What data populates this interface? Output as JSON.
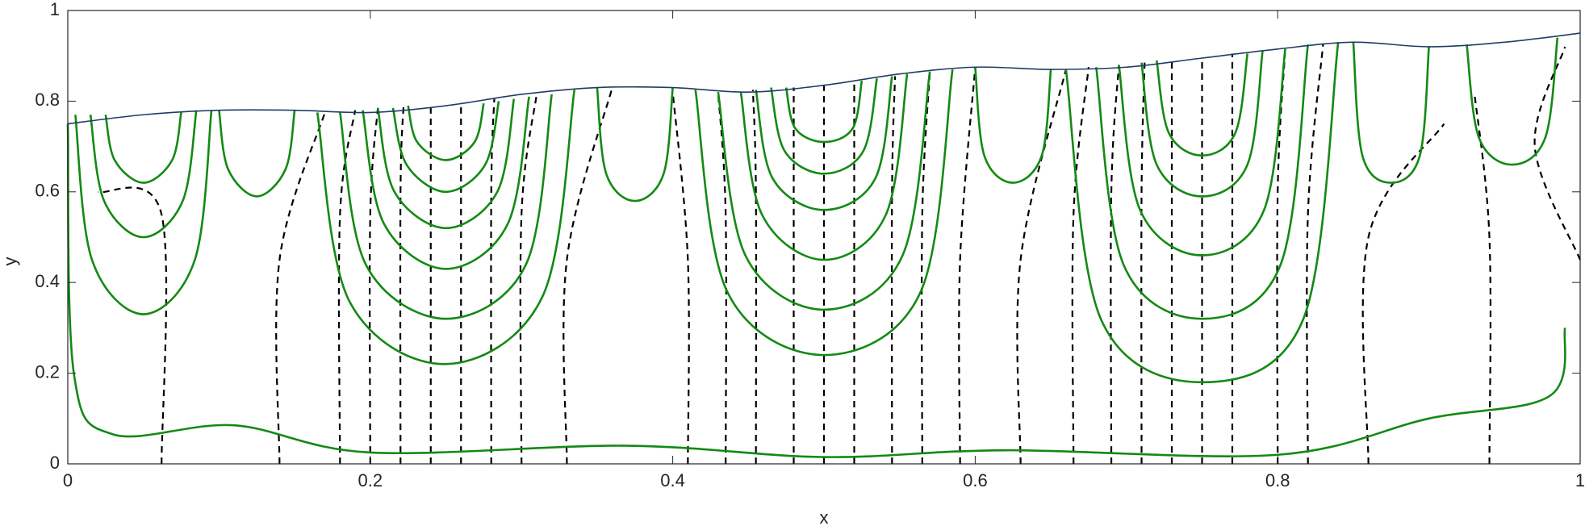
{
  "chart_data": {
    "type": "streamline",
    "xlabel": "x",
    "ylabel": "y",
    "xlim": [
      0,
      1
    ],
    "ylim": [
      0,
      1
    ],
    "xticks": [
      0,
      0.2,
      0.4,
      0.6,
      0.8,
      1
    ],
    "yticks": [
      0,
      0.2,
      0.4,
      0.6,
      0.8,
      1
    ],
    "surface": {
      "color": "#1f3d66",
      "x": [
        0,
        0.05,
        0.1,
        0.15,
        0.2,
        0.25,
        0.3,
        0.35,
        0.4,
        0.45,
        0.5,
        0.55,
        0.6,
        0.65,
        0.7,
        0.75,
        0.8,
        0.85,
        0.9,
        0.95,
        1
      ],
      "y": [
        0.75,
        0.77,
        0.78,
        0.78,
        0.775,
        0.79,
        0.815,
        0.83,
        0.83,
        0.82,
        0.835,
        0.86,
        0.875,
        0.87,
        0.875,
        0.895,
        0.915,
        0.93,
        0.92,
        0.93,
        0.95
      ]
    },
    "streamline_color": "#138a13",
    "streamlines": [
      {
        "x": [
          0,
          0.004,
          0.03,
          0.11,
          0.2,
          0.37,
          0.5,
          0.62,
          0.8,
          0.9,
          0.98,
          0.99
        ],
        "y": [
          0.75,
          0.2,
          0.065,
          0.085,
          0.025,
          0.04,
          0.015,
          0.03,
          0.02,
          0.1,
          0.15,
          0.3
        ]
      },
      {
        "x": [
          0.005,
          0.016,
          0.05,
          0.084,
          0.095
        ],
        "y": [
          0.77,
          0.45,
          0.33,
          0.45,
          0.78
        ]
      },
      {
        "x": [
          0.015,
          0.024,
          0.05,
          0.076,
          0.085
        ],
        "y": [
          0.77,
          0.58,
          0.5,
          0.58,
          0.78
        ]
      },
      {
        "x": [
          0.025,
          0.031,
          0.05,
          0.069,
          0.075
        ],
        "y": [
          0.77,
          0.67,
          0.62,
          0.67,
          0.775
        ]
      },
      {
        "x": [
          0.1,
          0.106,
          0.125,
          0.144,
          0.15
        ],
        "y": [
          0.78,
          0.65,
          0.59,
          0.65,
          0.78
        ]
      },
      {
        "x": [
          0.165,
          0.186,
          0.25,
          0.314,
          0.335
        ],
        "y": [
          0.775,
          0.36,
          0.22,
          0.37,
          0.825
        ]
      },
      {
        "x": [
          0.18,
          0.197,
          0.25,
          0.303,
          0.32
        ],
        "y": [
          0.775,
          0.44,
          0.32,
          0.44,
          0.815
        ]
      },
      {
        "x": [
          0.195,
          0.209,
          0.25,
          0.291,
          0.305
        ],
        "y": [
          0.78,
          0.53,
          0.43,
          0.53,
          0.81
        ]
      },
      {
        "x": [
          0.205,
          0.216,
          0.25,
          0.284,
          0.295
        ],
        "y": [
          0.785,
          0.6,
          0.52,
          0.6,
          0.805
        ]
      },
      {
        "x": [
          0.215,
          0.224,
          0.25,
          0.276,
          0.285
        ],
        "y": [
          0.785,
          0.66,
          0.6,
          0.66,
          0.8
        ]
      },
      {
        "x": [
          0.225,
          0.231,
          0.25,
          0.269,
          0.275
        ],
        "y": [
          0.79,
          0.71,
          0.67,
          0.71,
          0.795
        ]
      },
      {
        "x": [
          0.35,
          0.356,
          0.375,
          0.394,
          0.4
        ],
        "y": [
          0.83,
          0.64,
          0.58,
          0.64,
          0.83
        ]
      },
      {
        "x": [
          0.415,
          0.436,
          0.5,
          0.564,
          0.585
        ],
        "y": [
          0.825,
          0.38,
          0.24,
          0.38,
          0.87
        ]
      },
      {
        "x": [
          0.43,
          0.448,
          0.5,
          0.552,
          0.57
        ],
        "y": [
          0.82,
          0.46,
          0.34,
          0.46,
          0.865
        ]
      },
      {
        "x": [
          0.445,
          0.459,
          0.5,
          0.541,
          0.555
        ],
        "y": [
          0.82,
          0.55,
          0.45,
          0.55,
          0.86
        ]
      },
      {
        "x": [
          0.455,
          0.466,
          0.5,
          0.534,
          0.545
        ],
        "y": [
          0.825,
          0.63,
          0.56,
          0.63,
          0.855
        ]
      },
      {
        "x": [
          0.465,
          0.474,
          0.5,
          0.526,
          0.535
        ],
        "y": [
          0.83,
          0.69,
          0.64,
          0.69,
          0.85
        ]
      },
      {
        "x": [
          0.475,
          0.481,
          0.5,
          0.519,
          0.525
        ],
        "y": [
          0.83,
          0.74,
          0.71,
          0.74,
          0.845
        ]
      },
      {
        "x": [
          0.6,
          0.606,
          0.625,
          0.644,
          0.65
        ],
        "y": [
          0.875,
          0.68,
          0.62,
          0.68,
          0.87
        ]
      },
      {
        "x": [
          0.66,
          0.683,
          0.75,
          0.817,
          0.84
        ],
        "y": [
          0.87,
          0.32,
          0.18,
          0.32,
          0.93
        ]
      },
      {
        "x": [
          0.68,
          0.698,
          0.75,
          0.802,
          0.82
        ],
        "y": [
          0.875,
          0.44,
          0.32,
          0.44,
          0.925
        ]
      },
      {
        "x": [
          0.695,
          0.709,
          0.75,
          0.791,
          0.805
        ],
        "y": [
          0.88,
          0.56,
          0.46,
          0.56,
          0.915
        ]
      },
      {
        "x": [
          0.71,
          0.72,
          0.75,
          0.78,
          0.79
        ],
        "y": [
          0.885,
          0.66,
          0.59,
          0.66,
          0.91
        ]
      },
      {
        "x": [
          0.72,
          0.728,
          0.75,
          0.772,
          0.78
        ],
        "y": [
          0.89,
          0.73,
          0.68,
          0.73,
          0.905
        ]
      },
      {
        "x": [
          0.85,
          0.856,
          0.875,
          0.894,
          0.9
        ],
        "y": [
          0.93,
          0.68,
          0.62,
          0.68,
          0.92
        ]
      },
      {
        "x": [
          0.925,
          0.933,
          0.955,
          0.977,
          0.985
        ],
        "y": [
          0.925,
          0.72,
          0.66,
          0.72,
          0.94
        ]
      }
    ],
    "contour_color": "#000000",
    "contours": [
      {
        "x": [
          0.062,
          0.062,
          0.02
        ],
        "y": [
          0,
          0.55,
          0.6
        ]
      },
      {
        "x": [
          0.14,
          0.14,
          0.17
        ],
        "y": [
          0,
          0.45,
          0.775
        ]
      },
      {
        "x": [
          0.18,
          0.18,
          0.19
        ],
        "y": [
          0,
          0.55,
          0.78
        ]
      },
      {
        "x": [
          0.2,
          0.2,
          0.205
        ],
        "y": [
          0,
          0.55,
          0.785
        ]
      },
      {
        "x": [
          0.22,
          0.22,
          0.222
        ],
        "y": [
          0,
          0.6,
          0.79
        ]
      },
      {
        "x": [
          0.24,
          0.24,
          0.24
        ],
        "y": [
          0,
          0.6,
          0.79
        ]
      },
      {
        "x": [
          0.26,
          0.26,
          0.26
        ],
        "y": [
          0,
          0.6,
          0.795
        ]
      },
      {
        "x": [
          0.28,
          0.28,
          0.282
        ],
        "y": [
          0,
          0.6,
          0.805
        ]
      },
      {
        "x": [
          0.3,
          0.3,
          0.31
        ],
        "y": [
          0,
          0.55,
          0.815
        ]
      },
      {
        "x": [
          0.33,
          0.33,
          0.36
        ],
        "y": [
          0,
          0.45,
          0.83
        ]
      },
      {
        "x": [
          0.41,
          0.41,
          0.4
        ],
        "y": [
          0,
          0.45,
          0.82
        ]
      },
      {
        "x": [
          0.435,
          0.435,
          0.43
        ],
        "y": [
          0,
          0.55,
          0.82
        ]
      },
      {
        "x": [
          0.455,
          0.455,
          0.453
        ],
        "y": [
          0,
          0.6,
          0.825
        ]
      },
      {
        "x": [
          0.48,
          0.48,
          0.48
        ],
        "y": [
          0,
          0.6,
          0.83
        ]
      },
      {
        "x": [
          0.5,
          0.5,
          0.5
        ],
        "y": [
          0,
          0.6,
          0.835
        ]
      },
      {
        "x": [
          0.52,
          0.52,
          0.52
        ],
        "y": [
          0,
          0.6,
          0.845
        ]
      },
      {
        "x": [
          0.545,
          0.545,
          0.547
        ],
        "y": [
          0,
          0.6,
          0.855
        ]
      },
      {
        "x": [
          0.565,
          0.565,
          0.57
        ],
        "y": [
          0,
          0.55,
          0.865
        ]
      },
      {
        "x": [
          0.59,
          0.59,
          0.6
        ],
        "y": [
          0,
          0.45,
          0.875
        ]
      },
      {
        "x": [
          0.63,
          0.63,
          0.66
        ],
        "y": [
          0,
          0.45,
          0.87
        ]
      },
      {
        "x": [
          0.665,
          0.665,
          0.675
        ],
        "y": [
          0,
          0.55,
          0.875
        ]
      },
      {
        "x": [
          0.69,
          0.69,
          0.695
        ],
        "y": [
          0,
          0.6,
          0.88
        ]
      },
      {
        "x": [
          0.71,
          0.71,
          0.712
        ],
        "y": [
          0,
          0.6,
          0.885
        ]
      },
      {
        "x": [
          0.73,
          0.73,
          0.73
        ],
        "y": [
          0,
          0.6,
          0.89
        ]
      },
      {
        "x": [
          0.75,
          0.75,
          0.75
        ],
        "y": [
          0,
          0.6,
          0.895
        ]
      },
      {
        "x": [
          0.77,
          0.77,
          0.77
        ],
        "y": [
          0,
          0.6,
          0.905
        ]
      },
      {
        "x": [
          0.8,
          0.8,
          0.805
        ],
        "y": [
          0,
          0.6,
          0.915
        ]
      },
      {
        "x": [
          0.82,
          0.82,
          0.83
        ],
        "y": [
          0,
          0.55,
          0.925
        ]
      },
      {
        "x": [
          0.86,
          0.86,
          0.91
        ],
        "y": [
          0,
          0.5,
          0.75
        ]
      },
      {
        "x": [
          0.94,
          0.94,
          0.93
        ],
        "y": [
          0,
          0.5,
          0.82
        ]
      },
      {
        "x": [
          1,
          0.97,
          0.99
        ],
        "y": [
          0.45,
          0.7,
          0.92
        ]
      }
    ]
  }
}
